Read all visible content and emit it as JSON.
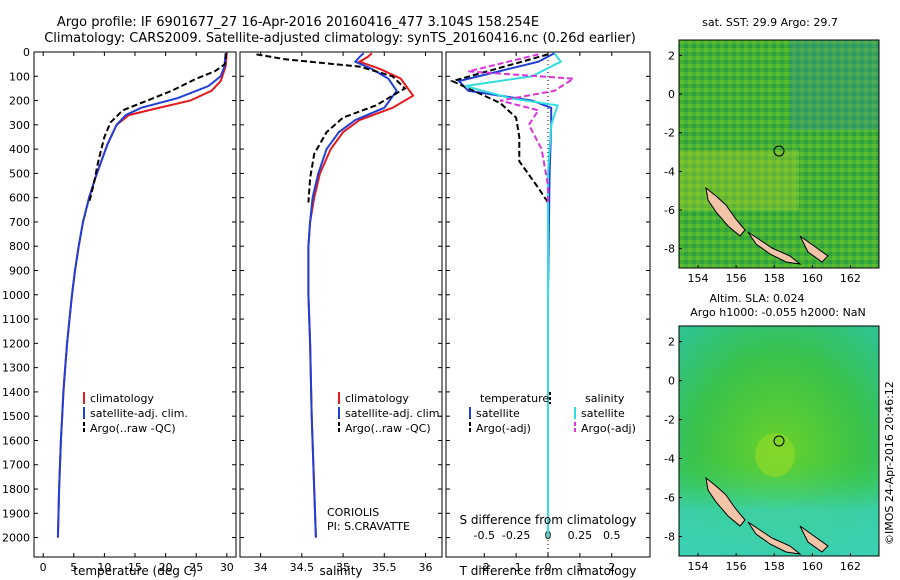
{
  "header": {
    "line1": "Argo profile: IF 6901677_27 16-Apr-2016 20160416_477 3.104S 158.254E",
    "line2": "Climatology: CARS2009. Satellite-adjusted climatology: synTS_20160416.nc (0.26d earlier)"
  },
  "colors": {
    "climatology": "#e41a1c",
    "satellite": "#1f3fd6",
    "argo": "#000000",
    "sal_satellite": "#33dddd",
    "sal_argo": "#dd33dd",
    "map_land": "#f2c4a8"
  },
  "legends": {
    "temp": [
      "climatology",
      "satellite-adj. clim.",
      "Argo(..raw -QC)"
    ],
    "sal": [
      "climatology",
      "satellite-adj. clim.",
      "Argo(..raw -QC)"
    ],
    "diff": {
      "temp_head": "temperature",
      "sal_head": "salinity",
      "temp_sat": "satellite",
      "temp_argo": "Argo(-adj)",
      "sal_sat": "satellite",
      "sal_argo": "Argo(-adj)"
    }
  },
  "annotations": {
    "coriolis": "CORIOLIS",
    "pi": "PI: S.CRAVATTE",
    "sst_title": "sat. SST: 29.9 Argo: 29.7",
    "sla_title1": "Altim. SLA: 0.024",
    "sla_title2": "Argo h1000: -0.055 h2000: NaN",
    "credit": "©IMOS 24-Apr-2016 20:46:12"
  },
  "chart_data": [
    {
      "type": "line",
      "title": "",
      "xlabel": "temperature (deg C)",
      "ylabel": "",
      "xlim": [
        -1.5,
        31.5
      ],
      "ylim": [
        2080,
        0
      ],
      "xticks": [
        0,
        5,
        10,
        15,
        20,
        25,
        30
      ],
      "yticks": [
        0,
        100,
        200,
        300,
        400,
        500,
        600,
        700,
        800,
        900,
        1000,
        1100,
        1200,
        1300,
        1400,
        1500,
        1600,
        1700,
        1800,
        1900,
        2000
      ],
      "series": [
        {
          "name": "climatology",
          "style": "solid",
          "points": [
            [
              30,
              5
            ],
            [
              29.8,
              60
            ],
            [
              29,
              120
            ],
            [
              27.5,
              160
            ],
            [
              24,
              200
            ],
            [
              18,
              235
            ],
            [
              14,
              260
            ],
            [
              12,
              300
            ],
            [
              10.5,
              380
            ],
            [
              9.5,
              450
            ],
            [
              8.5,
              520
            ],
            [
              7.5,
              600
            ],
            [
              6.5,
              700
            ],
            [
              5.8,
              800
            ],
            [
              5.2,
              900
            ],
            [
              4.7,
              1000
            ],
            [
              4.3,
              1100
            ],
            [
              3.9,
              1200
            ],
            [
              3.6,
              1300
            ],
            [
              3.3,
              1400
            ],
            [
              3.1,
              1500
            ],
            [
              2.9,
              1600
            ],
            [
              2.75,
              1700
            ],
            [
              2.6,
              1800
            ],
            [
              2.5,
              1900
            ],
            [
              2.4,
              2000
            ]
          ]
        },
        {
          "name": "satellite-adj. clim.",
          "style": "solid",
          "points": [
            [
              29.8,
              5
            ],
            [
              29.6,
              60
            ],
            [
              29,
              100
            ],
            [
              27,
              140
            ],
            [
              22,
              190
            ],
            [
              16,
              230
            ],
            [
              13.5,
              260
            ],
            [
              12,
              300
            ],
            [
              10.5,
              380
            ],
            [
              9.5,
              450
            ],
            [
              8.5,
              520
            ],
            [
              7.5,
              600
            ],
            [
              6.5,
              700
            ],
            [
              5.8,
              800
            ],
            [
              5.2,
              900
            ],
            [
              4.7,
              1000
            ],
            [
              4.3,
              1100
            ],
            [
              3.9,
              1200
            ],
            [
              3.6,
              1300
            ],
            [
              3.3,
              1400
            ],
            [
              3.1,
              1500
            ],
            [
              2.9,
              1600
            ],
            [
              2.75,
              1700
            ],
            [
              2.6,
              1800
            ],
            [
              2.5,
              1900
            ],
            [
              2.4,
              2000
            ]
          ]
        },
        {
          "name": "Argo(..raw -QC)",
          "style": "dashed",
          "points": [
            [
              29.9,
              5
            ],
            [
              29.7,
              50
            ],
            [
              28,
              80
            ],
            [
              25,
              110
            ],
            [
              21,
              160
            ],
            [
              17,
              200
            ],
            [
              13,
              240
            ],
            [
              11,
              290
            ],
            [
              10,
              350
            ],
            [
              9,
              450
            ],
            [
              8.2,
              550
            ],
            [
              7.5,
              620
            ]
          ]
        }
      ]
    },
    {
      "type": "line",
      "xlabel": "salinity",
      "xlim": [
        33.75,
        36.2
      ],
      "ylim": [
        2080,
        0
      ],
      "xticks": [
        34,
        34.5,
        35,
        35.5,
        36
      ],
      "series": [
        {
          "name": "climatology",
          "style": "solid",
          "points": [
            [
              35.35,
              5
            ],
            [
              35.3,
              20
            ],
            [
              35.2,
              40
            ],
            [
              35.45,
              70
            ],
            [
              35.7,
              110
            ],
            [
              35.85,
              180
            ],
            [
              35.6,
              230
            ],
            [
              35.2,
              280
            ],
            [
              35.0,
              330
            ],
            [
              34.85,
              400
            ],
            [
              34.72,
              500
            ],
            [
              34.65,
              600
            ],
            [
              34.6,
              700
            ],
            [
              34.58,
              800
            ],
            [
              34.58,
              1000
            ],
            [
              34.6,
              1200
            ],
            [
              34.62,
              1500
            ],
            [
              34.65,
              1800
            ],
            [
              34.67,
              2000
            ]
          ]
        },
        {
          "name": "satellite-adj. clim.",
          "style": "solid",
          "points": [
            [
              35.25,
              5
            ],
            [
              35.2,
              20
            ],
            [
              35.15,
              40
            ],
            [
              35.35,
              70
            ],
            [
              35.55,
              110
            ],
            [
              35.65,
              160
            ],
            [
              35.5,
              230
            ],
            [
              35.15,
              280
            ],
            [
              34.95,
              330
            ],
            [
              34.8,
              400
            ],
            [
              34.7,
              500
            ],
            [
              34.63,
              600
            ],
            [
              34.6,
              700
            ],
            [
              34.58,
              800
            ],
            [
              34.58,
              1000
            ],
            [
              34.6,
              1200
            ],
            [
              34.62,
              1500
            ],
            [
              34.65,
              1800
            ],
            [
              34.67,
              2000
            ]
          ]
        },
        {
          "name": "Argo(..raw -QC)",
          "style": "dashed",
          "points": [
            [
              33.95,
              10
            ],
            [
              34.3,
              30
            ],
            [
              35.2,
              60
            ],
            [
              35.6,
              100
            ],
            [
              35.75,
              150
            ],
            [
              35.4,
              220
            ],
            [
              35.0,
              270
            ],
            [
              34.8,
              330
            ],
            [
              34.65,
              420
            ],
            [
              34.6,
              520
            ],
            [
              34.58,
              620
            ]
          ]
        }
      ]
    },
    {
      "type": "line",
      "xlabel": "T difference from climatology",
      "xlabel_top": "S difference from climatology",
      "xlim": [
        -3.2,
        3.2
      ],
      "ylim": [
        2080,
        0
      ],
      "xticks": [
        -2,
        -1,
        0,
        1,
        2
      ],
      "xticks_s": [
        -0.5,
        -0.25,
        0,
        0.25,
        0.5
      ],
      "series": [
        {
          "name": "temperature satellite",
          "style": "solid",
          "points": [
            [
              0.2,
              5
            ],
            [
              -0.3,
              40
            ],
            [
              -2.8,
              120
            ],
            [
              -2.5,
              160
            ],
            [
              -0.5,
              200
            ],
            [
              0.1,
              230
            ],
            [
              0.1,
              300
            ],
            [
              0.05,
              500
            ],
            [
              0,
              1000
            ],
            [
              0,
              1500
            ],
            [
              0,
              2000
            ]
          ]
        },
        {
          "name": "temperature Argo(-adj)",
          "style": "dashed",
          "points": [
            [
              0,
              10
            ],
            [
              -3.0,
              120
            ],
            [
              -1.5,
              210
            ],
            [
              -1.0,
              270
            ],
            [
              -0.9,
              350
            ],
            [
              -0.9,
              450
            ],
            [
              -0.3,
              560
            ],
            [
              0,
              620
            ]
          ]
        },
        {
          "name": "salinity satellite",
          "style": "solid",
          "points": [
            [
              0.2,
              5
            ],
            [
              0.4,
              40
            ],
            [
              -0.5,
              100
            ],
            [
              -2.6,
              140
            ],
            [
              -1.2,
              190
            ],
            [
              0.3,
              220
            ],
            [
              0.1,
              300
            ],
            [
              0,
              500
            ],
            [
              0,
              1000
            ],
            [
              0,
              2000
            ]
          ]
        },
        {
          "name": "salinity Argo(-adj)",
          "style": "dashed",
          "points": [
            [
              -0.3,
              10
            ],
            [
              -2.5,
              80
            ],
            [
              0.8,
              110
            ],
            [
              0.2,
              160
            ],
            [
              -1.5,
              200
            ],
            [
              -0.3,
              240
            ],
            [
              -0.6,
              300
            ],
            [
              -0.2,
              400
            ],
            [
              0,
              550
            ],
            [
              0,
              620
            ]
          ]
        }
      ]
    },
    {
      "type": "heatmap",
      "title": "sat. SST: 29.9 Argo: 29.7",
      "xlim": [
        153,
        163.5
      ],
      "ylim": [
        -9,
        2.8
      ],
      "xticks": [
        154,
        156,
        158,
        160,
        162
      ],
      "yticks": [
        -8,
        -6,
        -4,
        -2,
        0,
        2
      ],
      "marker": {
        "lon": 158.254,
        "lat": -3.104
      }
    },
    {
      "type": "heatmap",
      "title": "Altim. SLA: 0.024",
      "xlim": [
        153,
        163.5
      ],
      "ylim": [
        -9,
        2.8
      ],
      "xticks": [
        154,
        156,
        158,
        160,
        162
      ],
      "yticks": [
        -8,
        -6,
        -4,
        -2,
        0,
        2
      ],
      "marker": {
        "lon": 158.254,
        "lat": -3.104
      }
    }
  ]
}
